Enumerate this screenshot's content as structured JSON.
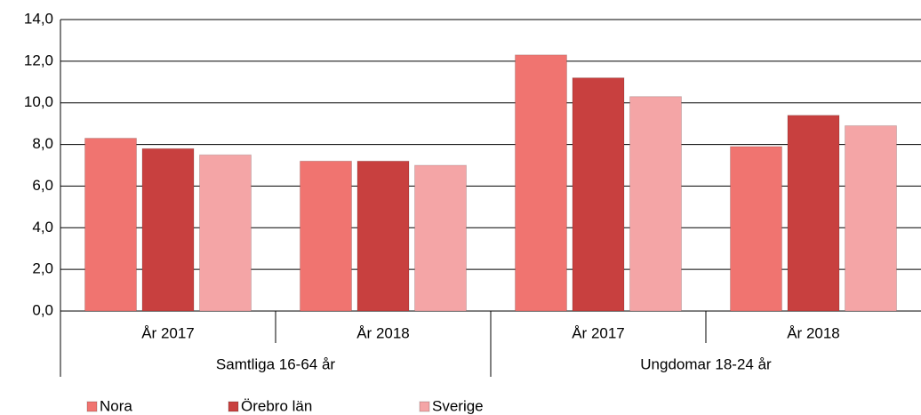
{
  "chart_data": {
    "type": "bar",
    "categories": [
      "År 2017",
      "År 2018",
      "År 2017",
      "År 2018"
    ],
    "groups": [
      "Samtliga 16-64 år",
      "Ungdomar 18-24 år"
    ],
    "series": [
      {
        "name": "Nora",
        "color": "#f07470",
        "values": [
          8.3,
          7.2,
          12.3,
          7.9
        ]
      },
      {
        "name": "Örebro län",
        "color": "#c8403f",
        "values": [
          7.8,
          7.2,
          11.2,
          9.4
        ]
      },
      {
        "name": "Sverige",
        "color": "#f4a5a6",
        "values": [
          7.5,
          7.0,
          10.3,
          8.9
        ]
      }
    ],
    "ylim": [
      0,
      14
    ],
    "yticks": [
      {
        "value": 0,
        "label": "0,0"
      },
      {
        "value": 2,
        "label": "2,0"
      },
      {
        "value": 4,
        "label": "4,0"
      },
      {
        "value": 6,
        "label": "6,0"
      },
      {
        "value": 8,
        "label": "8,0"
      },
      {
        "value": 10,
        "label": "10,0"
      },
      {
        "value": 12,
        "label": "12,0"
      },
      {
        "value": 14,
        "label": "14,0"
      }
    ],
    "grid": true
  }
}
